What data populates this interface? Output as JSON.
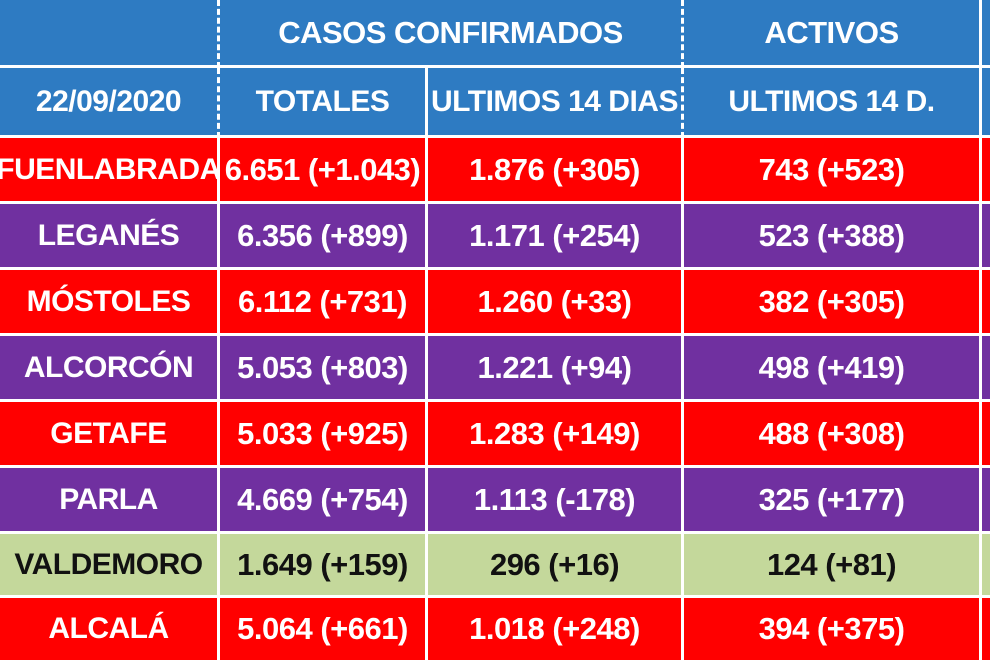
{
  "header": {
    "group_confirmed": "CASOS  CONFIRMADOS",
    "group_active": "ACTIVOS",
    "date": "22/09/2020",
    "col_totales": "TOTALES",
    "col_ultimos14": "ULTIMOS 14 DIAS",
    "col_activos14": "ULTIMOS 14 D."
  },
  "rows": [
    {
      "name": "FUENLABRADA",
      "totales": "6.651 (+1.043)",
      "ultimos14": "1.876 (+305)",
      "activos": "743 (+523)",
      "color": "#ff0000"
    },
    {
      "name": "LEGANÉS",
      "totales": "6.356 (+899)",
      "ultimos14": "1.171 (+254)",
      "activos": "523 (+388)",
      "color": "#7030a0"
    },
    {
      "name": "MÓSTOLES",
      "totales": "6.112 (+731)",
      "ultimos14": "1.260 (+33)",
      "activos": "382 (+305)",
      "color": "#ff0000"
    },
    {
      "name": "ALCORCÓN",
      "totales": "5.053 (+803)",
      "ultimos14": "1.221 (+94)",
      "activos": "498 (+419)",
      "color": "#7030a0"
    },
    {
      "name": "GETAFE",
      "totales": "5.033 (+925)",
      "ultimos14": "1.283 (+149)",
      "activos": "488 (+308)",
      "color": "#ff0000"
    },
    {
      "name": "PARLA",
      "totales": "4.669 (+754)",
      "ultimos14": "1.113 (-178)",
      "activos": "325 (+177)",
      "color": "#7030a0"
    },
    {
      "name": "VALDEMORO",
      "totales": "1.649 (+159)",
      "ultimos14": "296 (+16)",
      "activos": "124 (+81)",
      "color": "#c4d89b"
    },
    {
      "name": "ALCALÁ",
      "totales": "5.064 (+661)",
      "ultimos14": "1.018 (+248)",
      "activos": "394 (+375)",
      "color": "#ff0000"
    }
  ]
}
